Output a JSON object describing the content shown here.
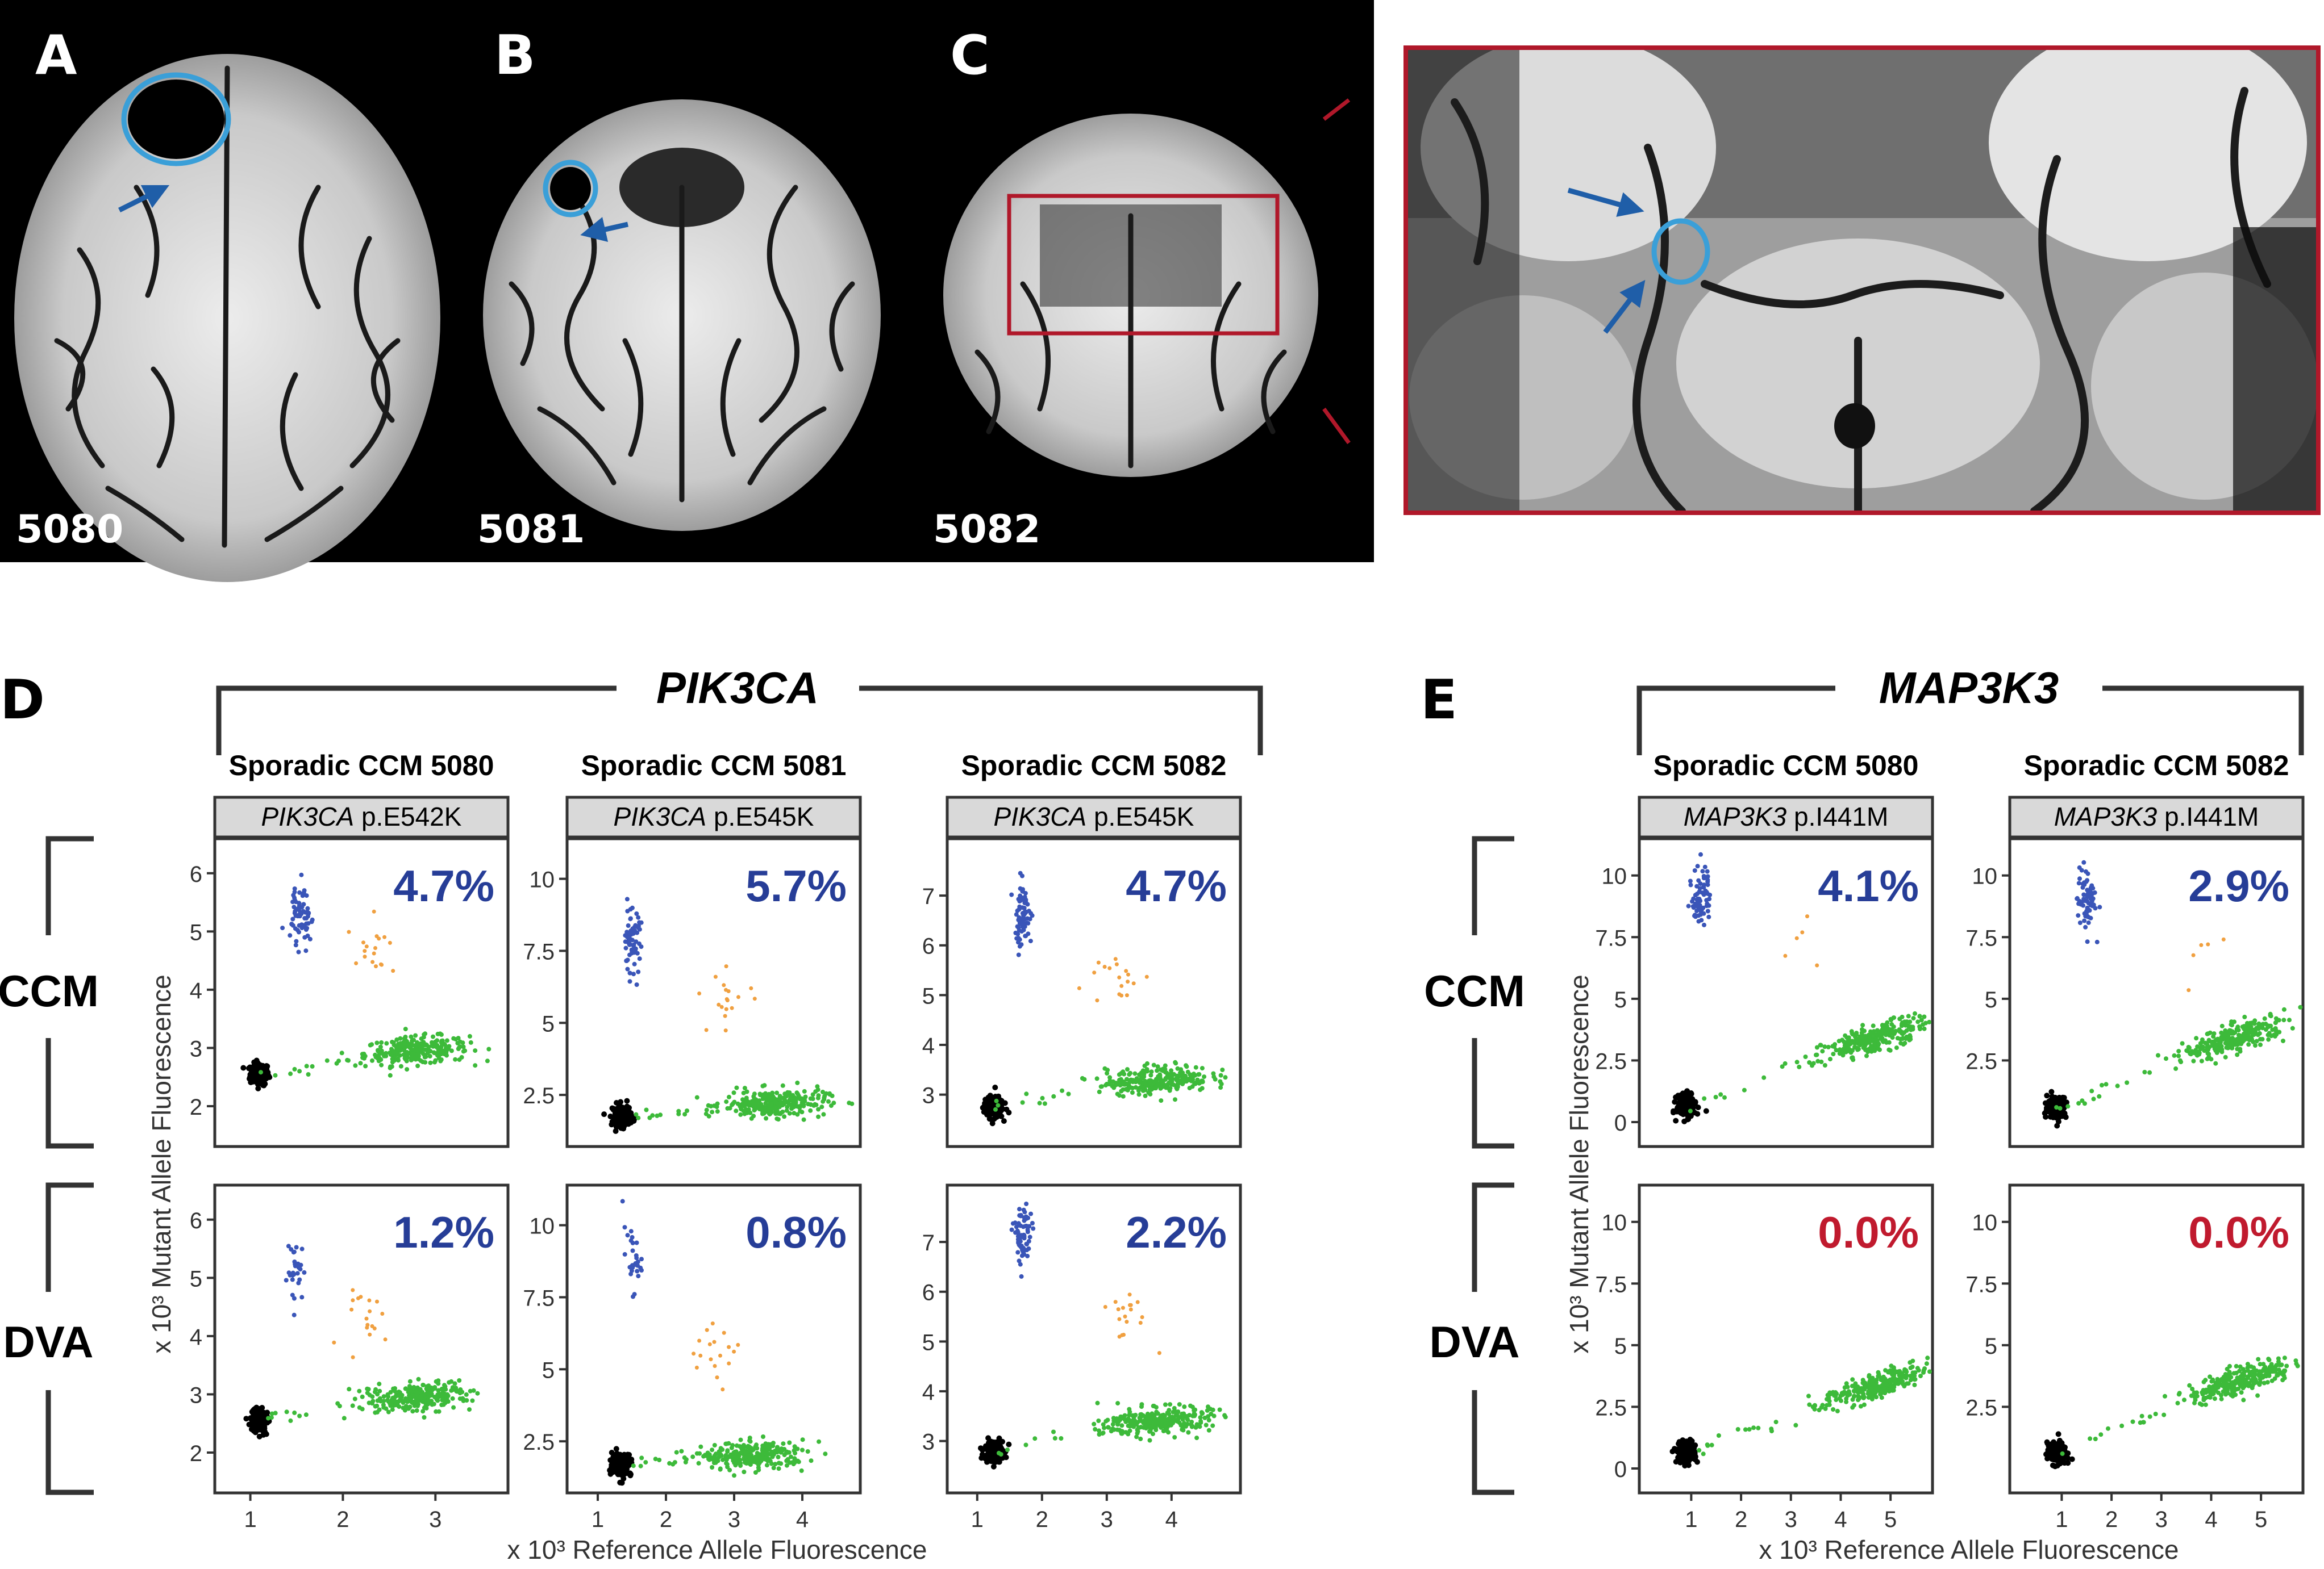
{
  "mri": {
    "panels": [
      {
        "label": "A",
        "id": "5080"
      },
      {
        "label": "B",
        "id": "5081"
      },
      {
        "label": "C",
        "id": "5082"
      }
    ]
  },
  "sections": [
    {
      "label": "D",
      "gene": "PIK3CA"
    },
    {
      "label": "E",
      "gene": "MAP3K3"
    }
  ],
  "row_labels": [
    "CCM",
    "DVA"
  ],
  "colors": {
    "mutant_cluster": "#3a55b8",
    "wildtype_cluster": "#3dba3a",
    "double_positive": "#f0a040",
    "empty_droplets": "#000000",
    "pct_positive": "#263d97",
    "pct_zero": "#c01a2e",
    "circle": "#3a9fd8",
    "arrow": "#1f5ea8",
    "zoom_box": "#b0182a"
  },
  "chart_data": [
    {
      "type": "scatter",
      "group": "D",
      "sample": "Sporadic CCM 5080",
      "gene": "PIK3CA",
      "variant": "p.E542K",
      "ylabel": "x 10³ Mutant Allele Fluorescence",
      "xlabel": "x 10³ Reference Allele Fluorescence",
      "xlim": [
        0.8,
        3.6
      ],
      "ylim": [
        1.6,
        6.3
      ],
      "xticks": [
        "1",
        "2",
        "3"
      ],
      "xtick_values": [
        1,
        2,
        3
      ],
      "yticks": [
        "2",
        "3",
        "4",
        "5",
        "6"
      ],
      "ytick_values": [
        2,
        3,
        4,
        5,
        6
      ],
      "rows": [
        {
          "tissue": "CCM",
          "percent": "4.7%",
          "clusters": {
            "neg": [
              1.1,
              2.55
            ],
            "wt": [
              2.8,
              2.95
            ],
            "mut": [
              1.55,
              5.3
            ],
            "dp": [
              2.3,
              4.6
            ]
          }
        },
        {
          "tissue": "DVA",
          "percent": "1.2%",
          "clusters": {
            "neg": [
              1.1,
              2.55
            ],
            "wt": [
              2.8,
              2.95
            ],
            "mut": [
              1.5,
              5.1
            ],
            "dp": [
              2.3,
              4.3
            ]
          }
        }
      ]
    },
    {
      "type": "scatter",
      "group": "D",
      "sample": "Sporadic CCM 5081",
      "gene": "PIK3CA",
      "variant": "p.E545K",
      "xlim": [
        0.8,
        4.6
      ],
      "ylim": [
        1.3,
        10.8
      ],
      "xticks": [
        "1",
        "2",
        "3",
        "4"
      ],
      "xtick_values": [
        1,
        2,
        3,
        4
      ],
      "yticks": [
        "2.5",
        "5",
        "7.5",
        "10"
      ],
      "ytick_values": [
        2.5,
        5,
        7.5,
        10
      ],
      "rows": [
        {
          "tissue": "CCM",
          "percent": "5.7%",
          "clusters": {
            "neg": [
              1.35,
              1.8
            ],
            "wt": [
              3.6,
              2.2
            ],
            "mut": [
              1.5,
              7.8
            ],
            "dp": [
              2.9,
              5.9
            ]
          }
        },
        {
          "tissue": "DVA",
          "percent": "0.8%",
          "clusters": {
            "neg": [
              1.35,
              1.7
            ],
            "wt": [
              3.3,
              2.0
            ],
            "mut": [
              1.5,
              8.8
            ],
            "dp": [
              2.8,
              5.5
            ]
          }
        }
      ]
    },
    {
      "type": "scatter",
      "group": "D",
      "sample": "Sporadic CCM 5082",
      "gene": "PIK3CA",
      "variant": "p.E545K",
      "xlim": [
        0.8,
        4.8
      ],
      "ylim": [
        2.3,
        7.8
      ],
      "xticks": [
        "1",
        "2",
        "3",
        "4"
      ],
      "xtick_values": [
        1,
        2,
        3,
        4
      ],
      "yticks": [
        "3",
        "4",
        "5",
        "6",
        "7"
      ],
      "ytick_values": [
        3,
        4,
        5,
        6,
        7
      ],
      "rows": [
        {
          "tissue": "CCM",
          "percent": "4.7%",
          "clusters": {
            "neg": [
              1.25,
              2.75
            ],
            "wt": [
              3.8,
              3.3
            ],
            "mut": [
              1.7,
              6.6
            ],
            "dp": [
              3.2,
              5.4
            ]
          }
        },
        {
          "tissue": "DVA",
          "percent": "2.2%",
          "clusters": {
            "neg": [
              1.25,
              2.8
            ],
            "wt": [
              3.8,
              3.4
            ],
            "mut": [
              1.7,
              7.1
            ],
            "dp": [
              3.3,
              5.6
            ]
          }
        }
      ]
    },
    {
      "type": "scatter",
      "group": "E",
      "sample": "Sporadic CCM 5080",
      "gene": "MAP3K3",
      "variant": "p.I441M",
      "ylabel": "x 10³ Mutant Allele Fluorescence",
      "xlabel": "x 10³ Reference Allele Fluorescence",
      "xlim": [
        0.3,
        5.5
      ],
      "ylim": [
        -0.3,
        10.8
      ],
      "xticks": [
        "1",
        "2",
        "3",
        "4",
        "5"
      ],
      "xtick_values": [
        1,
        2,
        3,
        4,
        5
      ],
      "yticks": [
        "0",
        "2.5",
        "5",
        "7.5",
        "10"
      ],
      "ytick_values": [
        0,
        2.5,
        5,
        7.5,
        10
      ],
      "rows": [
        {
          "tissue": "CCM",
          "percent": "4.1%",
          "clusters": {
            "neg": [
              0.9,
              0.65
            ],
            "wt": [
              4.7,
              3.4
            ],
            "mut": [
              1.2,
              9.2
            ],
            "dp": [
              3.2,
              7.3
            ]
          }
        },
        {
          "tissue": "DVA",
          "percent": "0.0%",
          "clusters": {
            "neg": [
              0.9,
              0.65
            ],
            "wt": [
              4.7,
              3.3
            ]
          }
        }
      ]
    },
    {
      "type": "scatter",
      "group": "E",
      "sample": "Sporadic CCM 5082",
      "gene": "MAP3K3",
      "variant": "p.I441M",
      "xlim": [
        0.3,
        5.5
      ],
      "ylim": [
        -0.3,
        10.8
      ],
      "xticks": [
        "1",
        "2",
        "3",
        "4",
        "5"
      ],
      "xtick_values": [
        1,
        2,
        3,
        4,
        5
      ],
      "yticks": [
        "2.5",
        "5",
        "7.5",
        "10"
      ],
      "ytick_values": [
        2.5,
        5,
        7.5,
        10
      ],
      "rows": [
        {
          "tissue": "CCM",
          "percent": "2.9%",
          "clusters": {
            "neg": [
              0.9,
              0.6
            ],
            "wt": [
              4.5,
              3.4
            ],
            "mut": [
              1.5,
              9.0
            ],
            "dp": [
              3.6,
              7.0
            ]
          }
        },
        {
          "tissue": "DVA",
          "percent": "0.0%",
          "clusters": {
            "neg": [
              0.9,
              0.6
            ],
            "wt": [
              4.6,
              3.6
            ]
          }
        }
      ]
    }
  ]
}
